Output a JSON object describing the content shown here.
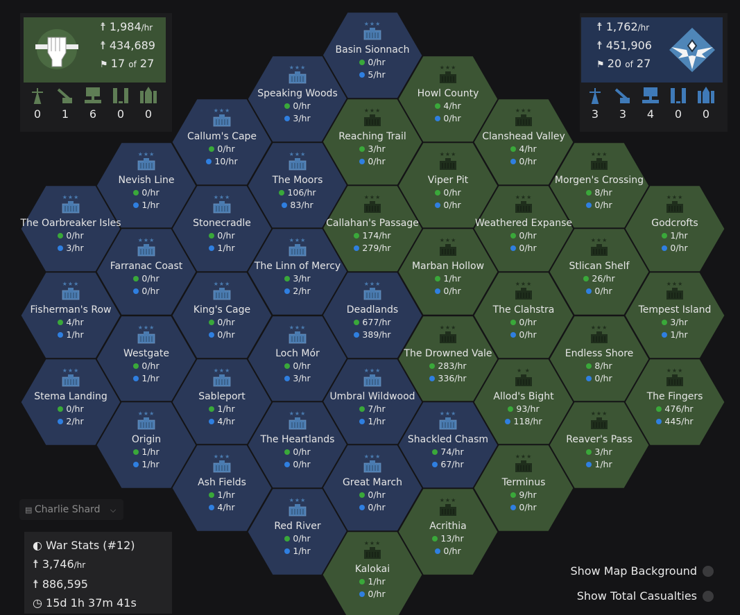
{
  "colors": {
    "warden_hex": "#2a3858",
    "colonial_hex": "#3c5534",
    "colonial_panel": "#3b5334",
    "warden_panel": "#243453",
    "colonial_dot": "#3aa83a",
    "warden_dot": "#2f7fe0"
  },
  "colonial": {
    "casualty_rate": "1,984",
    "casualty_unit": "/hr",
    "casualties_total": "434,689",
    "towns": "17",
    "towns_of": "of",
    "towns_total": "27",
    "structures": [
      {
        "icon": "radio-tower-icon",
        "count": "0"
      },
      {
        "icon": "artillery-icon",
        "count": "1"
      },
      {
        "icon": "intel-center-icon",
        "count": "6"
      },
      {
        "icon": "rocket-site-icon",
        "count": "0"
      },
      {
        "icon": "rocket-launch-icon",
        "count": "0"
      }
    ]
  },
  "warden": {
    "casualty_rate": "1,762",
    "casualty_unit": "/hr",
    "casualties_total": "451,906",
    "towns": "20",
    "towns_of": "of",
    "towns_total": "27",
    "structures": [
      {
        "icon": "radio-tower-icon",
        "count": "3"
      },
      {
        "icon": "artillery-icon",
        "count": "3"
      },
      {
        "icon": "intel-center-icon",
        "count": "4"
      },
      {
        "icon": "rocket-site-icon",
        "count": "0"
      },
      {
        "icon": "rocket-launch-icon",
        "count": "0"
      }
    ]
  },
  "shard": {
    "label": "Charlie Shard"
  },
  "war_stats": {
    "title": "War Stats (#12)",
    "casualty_rate": "3,746",
    "casualty_unit": "/hr",
    "casualties_total": "886,595",
    "duration": "15d 1h 37m 41s"
  },
  "toggles": [
    {
      "label": "Show Map Background",
      "on": false
    },
    {
      "label": "Show Total Casualties",
      "on": false
    }
  ],
  "regions": [
    {
      "name": "Basin Sionnach",
      "owner": "warden",
      "stars": 3,
      "colonial": "0/hr",
      "warden": "5/hr"
    },
    {
      "name": "Speaking Woods",
      "owner": "warden",
      "stars": 3,
      "colonial": "0/hr",
      "warden": "3/hr"
    },
    {
      "name": "Howl County",
      "owner": "colonial",
      "stars": 3,
      "colonial": "4/hr",
      "warden": "0/hr"
    },
    {
      "name": "Callum's Cape",
      "owner": "warden",
      "stars": 3,
      "colonial": "0/hr",
      "warden": "10/hr"
    },
    {
      "name": "Reaching Trail",
      "owner": "colonial",
      "stars": 3,
      "colonial": "3/hr",
      "warden": "0/hr"
    },
    {
      "name": "Clanshead Valley",
      "owner": "colonial",
      "stars": 3,
      "colonial": "4/hr",
      "warden": "0/hr"
    },
    {
      "name": "Nevish Line",
      "owner": "warden",
      "stars": 3,
      "colonial": "0/hr",
      "warden": "1/hr"
    },
    {
      "name": "The Moors",
      "owner": "warden",
      "stars": 3,
      "colonial": "106/hr",
      "warden": "83/hr"
    },
    {
      "name": "Viper Pit",
      "owner": "colonial",
      "stars": 3,
      "colonial": "0/hr",
      "warden": "0/hr"
    },
    {
      "name": "Morgen's Crossing",
      "owner": "colonial",
      "stars": 3,
      "colonial": "8/hr",
      "warden": "0/hr"
    },
    {
      "name": "The Oarbreaker Isles",
      "owner": "warden",
      "stars": 3,
      "colonial": "0/hr",
      "warden": "3/hr"
    },
    {
      "name": "Stonecradle",
      "owner": "warden",
      "stars": 3,
      "colonial": "0/hr",
      "warden": "1/hr"
    },
    {
      "name": "Callahan's Passage",
      "owner": "colonial",
      "stars": 3,
      "colonial": "174/hr",
      "warden": "279/hr"
    },
    {
      "name": "Weathered Expanse",
      "owner": "colonial",
      "stars": 3,
      "colonial": "0/hr",
      "warden": "0/hr"
    },
    {
      "name": "Godcrofts",
      "owner": "colonial",
      "stars": 3,
      "colonial": "1/hr",
      "warden": "0/hr"
    },
    {
      "name": "Farranac Coast",
      "owner": "warden",
      "stars": 3,
      "colonial": "0/hr",
      "warden": "0/hr"
    },
    {
      "name": "The Linn of Mercy",
      "owner": "warden",
      "stars": 3,
      "colonial": "3/hr",
      "warden": "2/hr"
    },
    {
      "name": "Marban Hollow",
      "owner": "colonial",
      "stars": 3,
      "colonial": "1/hr",
      "warden": "0/hr"
    },
    {
      "name": "Stlican Shelf",
      "owner": "colonial",
      "stars": 3,
      "colonial": "26/hr",
      "warden": "0/hr"
    },
    {
      "name": "Fisherman's Row",
      "owner": "warden",
      "stars": 3,
      "colonial": "4/hr",
      "warden": "1/hr"
    },
    {
      "name": "King's Cage",
      "owner": "warden",
      "stars": 3,
      "colonial": "0/hr",
      "warden": "0/hr"
    },
    {
      "name": "Deadlands",
      "owner": "warden",
      "stars": 3,
      "colonial": "677/hr",
      "warden": "389/hr"
    },
    {
      "name": "The Clahstra",
      "owner": "colonial",
      "stars": 3,
      "colonial": "0/hr",
      "warden": "0/hr"
    },
    {
      "name": "Tempest Island",
      "owner": "colonial",
      "stars": 3,
      "colonial": "3/hr",
      "warden": "1/hr"
    },
    {
      "name": "Westgate",
      "owner": "warden",
      "stars": 3,
      "colonial": "0/hr",
      "warden": "1/hr"
    },
    {
      "name": "Loch Mór",
      "owner": "warden",
      "stars": 3,
      "colonial": "0/hr",
      "warden": "3/hr"
    },
    {
      "name": "The Drowned Vale",
      "owner": "colonial",
      "stars": 3,
      "colonial": "283/hr",
      "warden": "336/hr"
    },
    {
      "name": "Endless Shore",
      "owner": "colonial",
      "stars": 3,
      "colonial": "8/hr",
      "warden": "0/hr"
    },
    {
      "name": "Stema Landing",
      "owner": "warden",
      "stars": 3,
      "colonial": "0/hr",
      "warden": "2/hr"
    },
    {
      "name": "Sableport",
      "owner": "warden",
      "stars": 3,
      "colonial": "1/hr",
      "warden": "4/hr"
    },
    {
      "name": "Umbral Wildwood",
      "owner": "warden",
      "stars": 3,
      "colonial": "7/hr",
      "warden": "1/hr"
    },
    {
      "name": "Allod's Bight",
      "owner": "colonial",
      "stars": 2,
      "colonial": "93/hr",
      "warden": "118/hr"
    },
    {
      "name": "The Fingers",
      "owner": "colonial",
      "stars": 3,
      "colonial": "476/hr",
      "warden": "445/hr"
    },
    {
      "name": "Origin",
      "owner": "warden",
      "stars": 3,
      "colonial": "1/hr",
      "warden": "1/hr"
    },
    {
      "name": "The Heartlands",
      "owner": "warden",
      "stars": 3,
      "colonial": "0/hr",
      "warden": "0/hr"
    },
    {
      "name": "Shackled Chasm",
      "owner": "warden",
      "stars": 3,
      "colonial": "74/hr",
      "warden": "67/hr"
    },
    {
      "name": "Reaver's Pass",
      "owner": "colonial",
      "stars": 3,
      "colonial": "3/hr",
      "warden": "1/hr"
    },
    {
      "name": "Ash Fields",
      "owner": "warden",
      "stars": 3,
      "colonial": "1/hr",
      "warden": "4/hr"
    },
    {
      "name": "Great March",
      "owner": "warden",
      "stars": 3,
      "colonial": "0/hr",
      "warden": "0/hr"
    },
    {
      "name": "Terminus",
      "owner": "colonial",
      "stars": 3,
      "colonial": "9/hr",
      "warden": "0/hr"
    },
    {
      "name": "Red River",
      "owner": "warden",
      "stars": 3,
      "colonial": "0/hr",
      "warden": "1/hr"
    },
    {
      "name": "Acrithia",
      "owner": "colonial",
      "stars": 3,
      "colonial": "13/hr",
      "warden": "0/hr"
    },
    {
      "name": "Kalokai",
      "owner": "colonial",
      "stars": 3,
      "colonial": "1/hr",
      "warden": "0/hr"
    }
  ]
}
